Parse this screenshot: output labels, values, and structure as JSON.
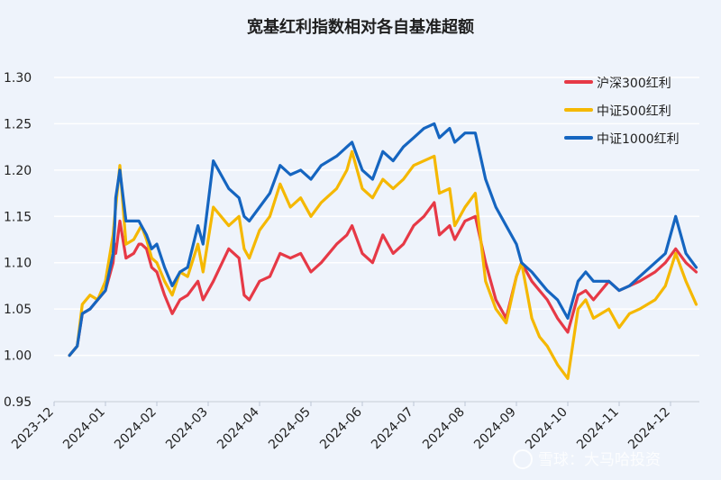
{
  "chart_data": {
    "type": "line",
    "title": "宽基红利指数相对各自基准超额",
    "xlabel": "",
    "ylabel": "",
    "ylim": [
      0.95,
      1.3
    ],
    "yticks": [
      "0.95",
      "1.00",
      "1.05",
      "1.10",
      "1.15",
      "1.20",
      "1.25",
      "1.30"
    ],
    "x_tick_labels": [
      "2023-12",
      "2024-01",
      "2024-02",
      "2024-03",
      "2024-04",
      "2024-05",
      "2024-06",
      "2024-07",
      "2024-08",
      "2024-09",
      "2024-10",
      "2024-11",
      "2024-12"
    ],
    "x_domain": [
      0,
      12.6
    ],
    "grid": true,
    "legend": "top-right",
    "series": [
      {
        "name": "沪深300红利",
        "color": "#e63946",
        "x": [
          0.3,
          0.45,
          0.55,
          0.7,
          0.85,
          1.0,
          1.15,
          1.18,
          1.2,
          1.28,
          1.4,
          1.55,
          1.65,
          1.7,
          1.8,
          1.9,
          2.0,
          2.15,
          2.3,
          2.45,
          2.6,
          2.8,
          2.9,
          3.1,
          3.4,
          3.6,
          3.7,
          3.8,
          4.0,
          4.2,
          4.4,
          4.6,
          4.8,
          5.0,
          5.2,
          5.5,
          5.7,
          5.8,
          6.0,
          6.2,
          6.4,
          6.6,
          6.8,
          7.0,
          7.2,
          7.4,
          7.5,
          7.7,
          7.8,
          8.0,
          8.2,
          8.4,
          8.6,
          8.8,
          9.0,
          9.1,
          9.3,
          9.45,
          9.6,
          9.8,
          10.0,
          10.2,
          10.35,
          10.5,
          10.8,
          11.0,
          11.2,
          11.4,
          11.7,
          11.9,
          12.1,
          12.3,
          12.5
        ],
        "y": [
          1.0,
          1.01,
          1.045,
          1.05,
          1.06,
          1.07,
          1.1,
          1.12,
          1.11,
          1.145,
          1.105,
          1.11,
          1.12,
          1.12,
          1.115,
          1.095,
          1.09,
          1.065,
          1.045,
          1.06,
          1.065,
          1.08,
          1.06,
          1.08,
          1.115,
          1.105,
          1.065,
          1.06,
          1.08,
          1.085,
          1.11,
          1.105,
          1.11,
          1.09,
          1.1,
          1.12,
          1.13,
          1.14,
          1.11,
          1.1,
          1.13,
          1.11,
          1.12,
          1.14,
          1.15,
          1.165,
          1.13,
          1.14,
          1.125,
          1.145,
          1.15,
          1.1,
          1.06,
          1.04,
          1.085,
          1.1,
          1.08,
          1.07,
          1.06,
          1.04,
          1.025,
          1.065,
          1.07,
          1.06,
          1.08,
          1.07,
          1.075,
          1.08,
          1.09,
          1.1,
          1.115,
          1.1,
          1.09
        ]
      },
      {
        "name": "中证500红利",
        "color": "#f5b800",
        "x": [
          0.3,
          0.45,
          0.55,
          0.7,
          0.85,
          1.0,
          1.15,
          1.18,
          1.2,
          1.28,
          1.4,
          1.55,
          1.65,
          1.7,
          1.8,
          1.9,
          2.0,
          2.15,
          2.3,
          2.45,
          2.6,
          2.8,
          2.9,
          3.1,
          3.4,
          3.6,
          3.7,
          3.8,
          4.0,
          4.2,
          4.4,
          4.6,
          4.8,
          5.0,
          5.2,
          5.5,
          5.7,
          5.8,
          6.0,
          6.2,
          6.4,
          6.6,
          6.8,
          7.0,
          7.2,
          7.4,
          7.5,
          7.7,
          7.8,
          8.0,
          8.2,
          8.4,
          8.6,
          8.8,
          9.0,
          9.1,
          9.3,
          9.45,
          9.6,
          9.8,
          10.0,
          10.2,
          10.35,
          10.5,
          10.8,
          11.0,
          11.2,
          11.4,
          11.7,
          11.9,
          12.1,
          12.3,
          12.5
        ],
        "y": [
          1.0,
          1.01,
          1.055,
          1.065,
          1.06,
          1.08,
          1.13,
          1.15,
          1.16,
          1.205,
          1.12,
          1.125,
          1.135,
          1.14,
          1.125,
          1.105,
          1.1,
          1.08,
          1.065,
          1.09,
          1.085,
          1.12,
          1.09,
          1.16,
          1.14,
          1.15,
          1.115,
          1.105,
          1.135,
          1.15,
          1.185,
          1.16,
          1.17,
          1.15,
          1.165,
          1.18,
          1.2,
          1.22,
          1.18,
          1.17,
          1.19,
          1.18,
          1.19,
          1.205,
          1.21,
          1.215,
          1.175,
          1.18,
          1.14,
          1.16,
          1.175,
          1.08,
          1.05,
          1.035,
          1.085,
          1.1,
          1.04,
          1.02,
          1.01,
          0.99,
          0.975,
          1.05,
          1.06,
          1.04,
          1.05,
          1.03,
          1.045,
          1.05,
          1.06,
          1.075,
          1.11,
          1.08,
          1.055
        ]
      },
      {
        "name": "中证1000红利",
        "color": "#1565c0",
        "x": [
          0.3,
          0.45,
          0.55,
          0.7,
          0.85,
          1.0,
          1.15,
          1.18,
          1.2,
          1.28,
          1.4,
          1.55,
          1.65,
          1.7,
          1.8,
          1.9,
          2.0,
          2.15,
          2.3,
          2.45,
          2.6,
          2.8,
          2.9,
          3.1,
          3.4,
          3.6,
          3.7,
          3.8,
          4.0,
          4.2,
          4.4,
          4.6,
          4.8,
          5.0,
          5.2,
          5.5,
          5.7,
          5.8,
          6.0,
          6.2,
          6.4,
          6.6,
          6.8,
          7.0,
          7.2,
          7.4,
          7.5,
          7.7,
          7.8,
          8.0,
          8.2,
          8.4,
          8.6,
          8.8,
          9.0,
          9.1,
          9.3,
          9.45,
          9.6,
          9.8,
          10.0,
          10.2,
          10.35,
          10.5,
          10.8,
          11.0,
          11.2,
          11.4,
          11.7,
          11.9,
          12.1,
          12.3,
          12.5
        ],
        "y": [
          1.0,
          1.01,
          1.045,
          1.05,
          1.06,
          1.07,
          1.11,
          1.14,
          1.17,
          1.2,
          1.145,
          1.145,
          1.145,
          1.14,
          1.13,
          1.115,
          1.12,
          1.095,
          1.075,
          1.09,
          1.095,
          1.14,
          1.12,
          1.21,
          1.18,
          1.17,
          1.15,
          1.145,
          1.16,
          1.175,
          1.205,
          1.195,
          1.2,
          1.19,
          1.205,
          1.215,
          1.225,
          1.23,
          1.2,
          1.19,
          1.22,
          1.21,
          1.225,
          1.235,
          1.245,
          1.25,
          1.235,
          1.245,
          1.23,
          1.24,
          1.24,
          1.19,
          1.16,
          1.14,
          1.12,
          1.1,
          1.09,
          1.08,
          1.07,
          1.06,
          1.04,
          1.08,
          1.09,
          1.08,
          1.08,
          1.07,
          1.075,
          1.085,
          1.1,
          1.11,
          1.15,
          1.11,
          1.095
        ]
      }
    ]
  },
  "watermark": "雪球：大马哈投资"
}
